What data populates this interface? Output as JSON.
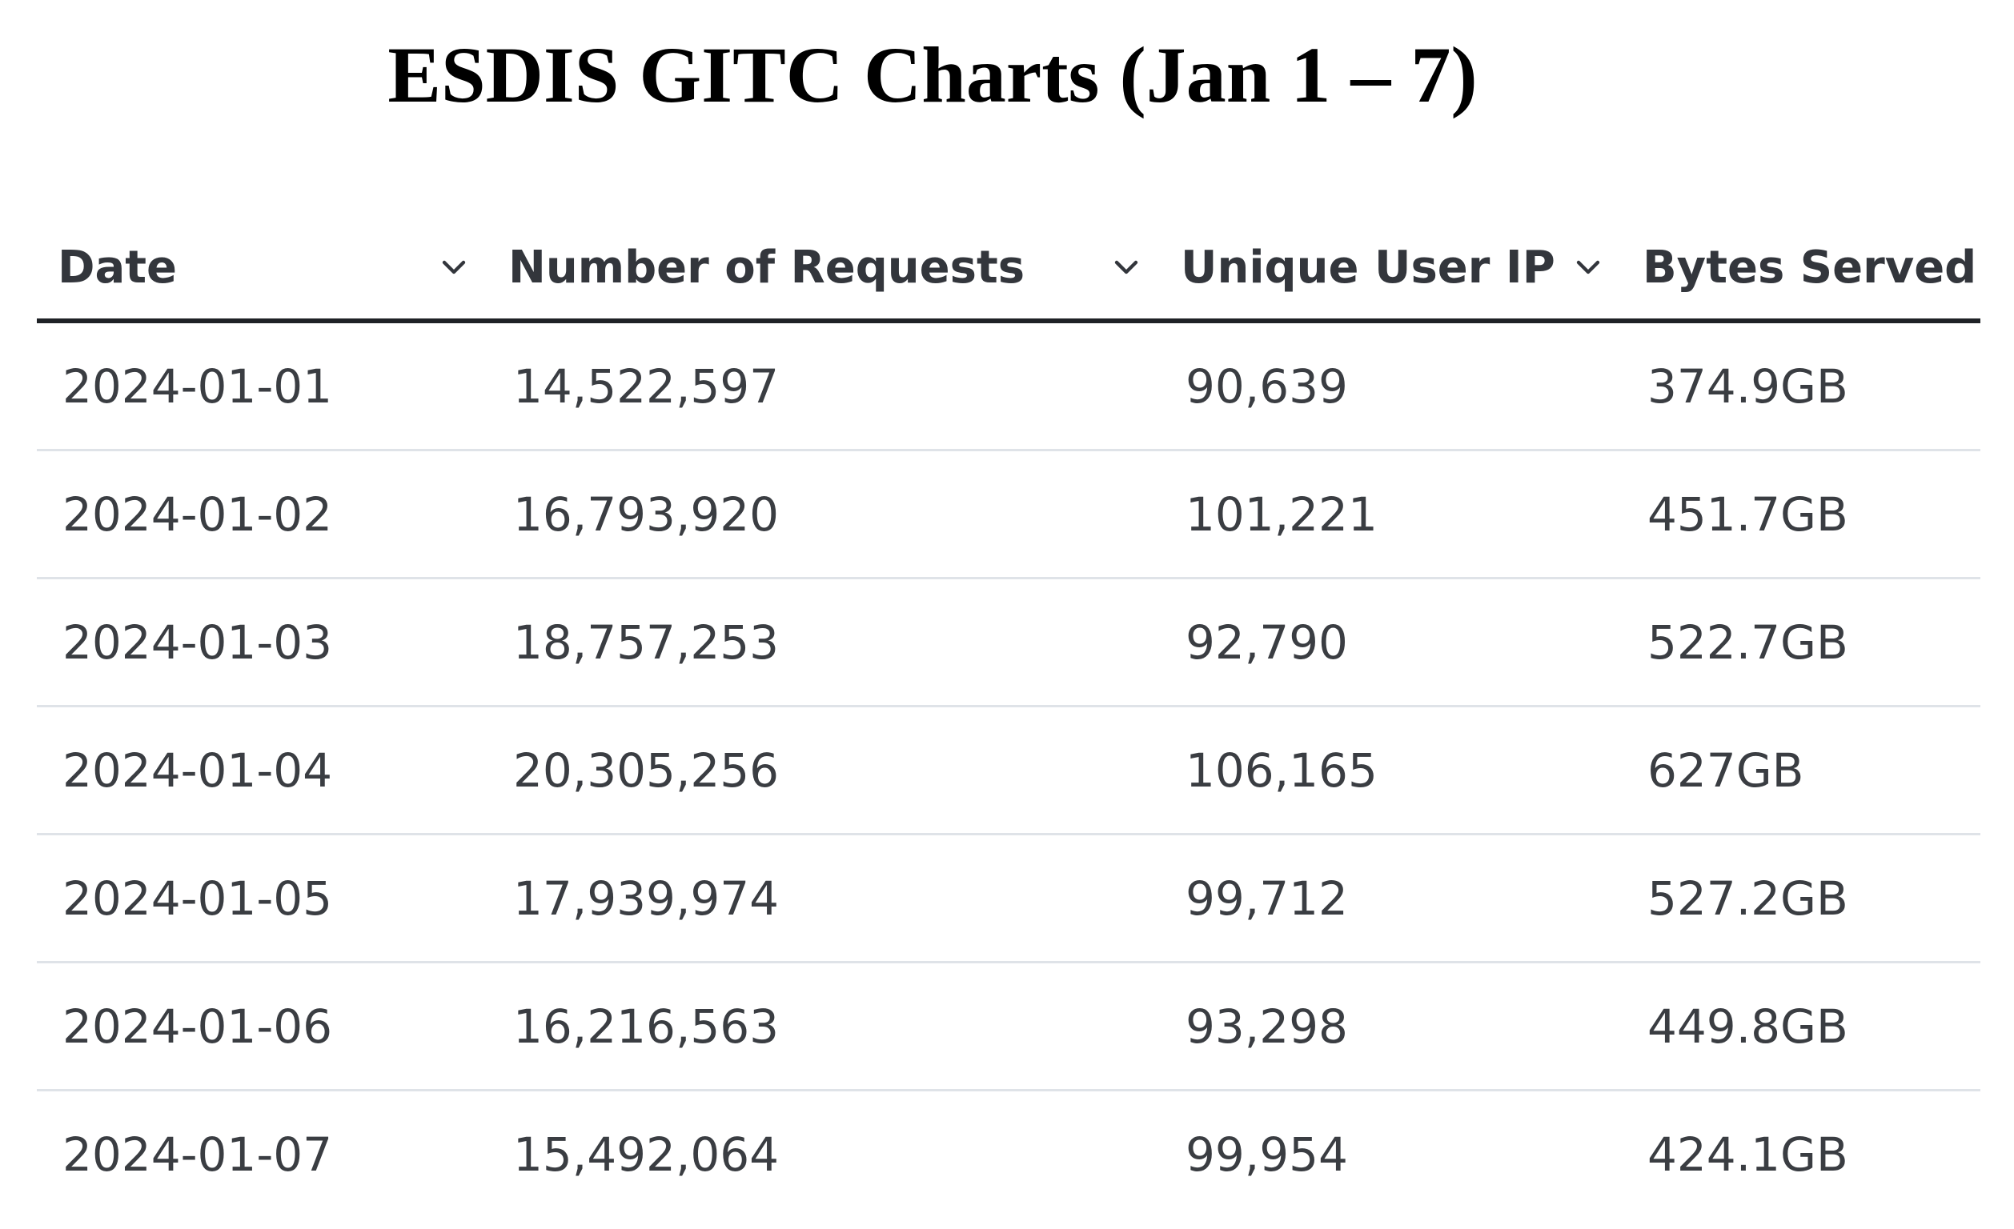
{
  "title": "ESDIS GITC Charts (Jan 1 – 7)",
  "table": {
    "columns": [
      {
        "label": "Date",
        "icon": "chevron-down-icon"
      },
      {
        "label": "Number of Requests",
        "icon": "chevron-down-icon"
      },
      {
        "label": "Unique User IP",
        "icon": "chevron-down-icon"
      },
      {
        "label": "Bytes Served"
      }
    ],
    "rows": [
      [
        "2024-01-01",
        "14,522,597",
        "90,639",
        "374.9GB"
      ],
      [
        "2024-01-02",
        "16,793,920",
        "101,221",
        "451.7GB"
      ],
      [
        "2024-01-03",
        "18,757,253",
        "92,790",
        "522.7GB"
      ],
      [
        "2024-01-04",
        "20,305,256",
        "106,165",
        "627GB"
      ],
      [
        "2024-01-05",
        "17,939,974",
        "99,712",
        "527.2GB"
      ],
      [
        "2024-01-06",
        "16,216,563",
        "93,298",
        "449.8GB"
      ],
      [
        "2024-01-07",
        "15,492,064",
        "99,954",
        "424.1GB"
      ]
    ]
  }
}
